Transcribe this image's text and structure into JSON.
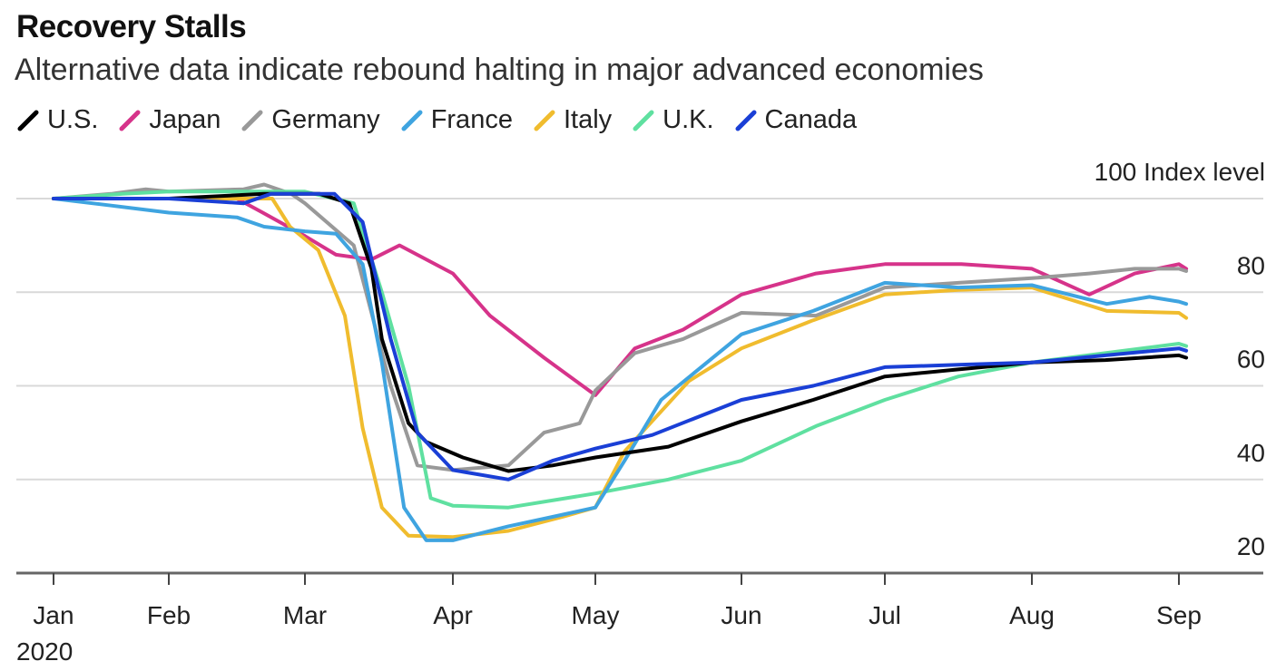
{
  "chart_data": {
    "type": "line",
    "title": "Recovery Stalls",
    "subtitle": "Alternative data indicate rebound halting in major advanced economies",
    "ylabel": "Index level",
    "ylim": [
      20,
      100
    ],
    "yticks": [
      100,
      80,
      60,
      40,
      20
    ],
    "ytick_labels": [
      "100 Index level",
      "80",
      "60",
      "40",
      "20"
    ],
    "xtick_labels": [
      "Jan",
      "Feb",
      "Mar",
      "Apr",
      "May",
      "Jun",
      "Jul",
      "Aug",
      "Sep"
    ],
    "xyear_label": "2020",
    "x_units": "months since Jan 1 2020",
    "grid": true,
    "legend_position": "top-left",
    "series": [
      {
        "name": "U.S.",
        "color": "#000000",
        "points": [
          [
            0,
            100
          ],
          [
            0.6,
            100
          ],
          [
            1,
            100
          ],
          [
            1.7,
            101
          ],
          [
            2.1,
            101
          ],
          [
            2.3,
            99
          ],
          [
            2.45,
            85
          ],
          [
            2.52,
            70
          ],
          [
            2.7,
            52
          ],
          [
            2.82,
            48
          ],
          [
            3.07,
            44.7
          ],
          [
            3.39,
            41.8
          ],
          [
            3.7,
            43
          ],
          [
            4,
            44.7
          ],
          [
            4.5,
            47
          ],
          [
            5,
            52.4
          ],
          [
            5.5,
            57
          ],
          [
            6,
            62
          ],
          [
            6.5,
            63.5
          ],
          [
            7,
            65
          ],
          [
            7.5,
            65.5
          ],
          [
            8,
            66.5
          ],
          [
            8.05,
            66
          ]
        ]
      },
      {
        "name": "Japan",
        "color": "#d6338a",
        "points": [
          [
            0,
            100
          ],
          [
            0.6,
            100
          ],
          [
            1,
            100
          ],
          [
            1.5,
            100
          ],
          [
            1.69,
            97
          ],
          [
            2,
            92
          ],
          [
            2.21,
            88
          ],
          [
            2.45,
            87
          ],
          [
            2.64,
            90
          ],
          [
            3,
            84
          ],
          [
            3.26,
            75
          ],
          [
            3.64,
            66
          ],
          [
            4,
            58
          ],
          [
            4.27,
            68
          ],
          [
            4.6,
            72
          ],
          [
            5,
            79.5
          ],
          [
            5.52,
            84
          ],
          [
            6,
            86
          ],
          [
            6.52,
            86
          ],
          [
            7,
            85
          ],
          [
            7.39,
            79.5
          ],
          [
            7.7,
            84
          ],
          [
            8,
            86
          ],
          [
            8.05,
            85
          ]
        ]
      },
      {
        "name": "Germany",
        "color": "#999999",
        "points": [
          [
            0,
            100
          ],
          [
            0.5,
            101
          ],
          [
            0.8,
            102
          ],
          [
            1,
            101.5
          ],
          [
            1.55,
            102
          ],
          [
            1.7,
            103
          ],
          [
            1.9,
            101
          ],
          [
            2,
            99
          ],
          [
            2.33,
            90
          ],
          [
            2.58,
            60
          ],
          [
            2.76,
            43
          ],
          [
            3,
            42
          ],
          [
            3.39,
            43
          ],
          [
            3.64,
            50
          ],
          [
            3.89,
            52
          ],
          [
            4,
            59
          ],
          [
            4.27,
            67
          ],
          [
            4.6,
            70
          ],
          [
            5,
            75.6
          ],
          [
            5.52,
            75
          ],
          [
            6,
            81
          ],
          [
            6.5,
            82
          ],
          [
            7,
            83
          ],
          [
            7.39,
            84
          ],
          [
            7.7,
            85
          ],
          [
            8,
            85
          ],
          [
            8.05,
            84.5
          ]
        ]
      },
      {
        "name": "France",
        "color": "#3fa4e0",
        "points": [
          [
            0,
            100
          ],
          [
            0.5,
            98.5
          ],
          [
            1,
            97
          ],
          [
            1.5,
            96
          ],
          [
            1.7,
            94
          ],
          [
            2,
            93
          ],
          [
            2.21,
            92.5
          ],
          [
            2.39,
            86
          ],
          [
            2.52,
            65
          ],
          [
            2.67,
            34
          ],
          [
            2.82,
            27
          ],
          [
            3,
            27
          ],
          [
            3.39,
            30
          ],
          [
            3.7,
            32
          ],
          [
            4,
            34
          ],
          [
            4.2,
            44
          ],
          [
            4.45,
            57
          ],
          [
            5,
            71
          ],
          [
            5.5,
            76
          ],
          [
            6,
            82
          ],
          [
            6.5,
            81
          ],
          [
            7,
            81.5
          ],
          [
            7.51,
            77.5
          ],
          [
            7.8,
            79
          ],
          [
            8,
            78
          ],
          [
            8.05,
            77.5
          ]
        ]
      },
      {
        "name": "Italy",
        "color": "#f0bc2e",
        "points": [
          [
            0,
            100
          ],
          [
            0.6,
            100
          ],
          [
            1,
            100
          ],
          [
            1.5,
            100
          ],
          [
            1.76,
            100
          ],
          [
            1.89,
            94
          ],
          [
            2.09,
            89
          ],
          [
            2.27,
            75
          ],
          [
            2.39,
            51
          ],
          [
            2.52,
            34
          ],
          [
            2.7,
            28
          ],
          [
            3,
            27.7
          ],
          [
            3.39,
            29
          ],
          [
            3.77,
            32
          ],
          [
            4,
            34
          ],
          [
            4.2,
            46
          ],
          [
            4.64,
            61
          ],
          [
            5,
            68
          ],
          [
            5.5,
            74
          ],
          [
            6,
            79.5
          ],
          [
            6.5,
            80.5
          ],
          [
            7,
            81
          ],
          [
            7.51,
            76
          ],
          [
            8,
            75.6
          ],
          [
            8.05,
            74.5
          ]
        ]
      },
      {
        "name": "U.K.",
        "color": "#5fe0a0",
        "points": [
          [
            0,
            100
          ],
          [
            0.6,
            101
          ],
          [
            1,
            101.5
          ],
          [
            1.6,
            101.5
          ],
          [
            2,
            101.5
          ],
          [
            2.33,
            99
          ],
          [
            2.52,
            80
          ],
          [
            2.7,
            60
          ],
          [
            2.85,
            36
          ],
          [
            3,
            34.4
          ],
          [
            3.39,
            34
          ],
          [
            4,
            37
          ],
          [
            4.5,
            40
          ],
          [
            5,
            44
          ],
          [
            5.52,
            51.4
          ],
          [
            6,
            57
          ],
          [
            6.5,
            62
          ],
          [
            7,
            65
          ],
          [
            7.5,
            67
          ],
          [
            8,
            69
          ],
          [
            8.05,
            68.5
          ]
        ]
      },
      {
        "name": "Canada",
        "color": "#1a3fd6",
        "points": [
          [
            0,
            100
          ],
          [
            0.6,
            100
          ],
          [
            1,
            100
          ],
          [
            1.55,
            99
          ],
          [
            1.75,
            101
          ],
          [
            2,
            101
          ],
          [
            2.2,
            101
          ],
          [
            2.39,
            95
          ],
          [
            2.58,
            70
          ],
          [
            2.76,
            50
          ],
          [
            3,
            42
          ],
          [
            3.39,
            40
          ],
          [
            3.7,
            44
          ],
          [
            4,
            46.6
          ],
          [
            4.39,
            49.5
          ],
          [
            5,
            57
          ],
          [
            5.5,
            60
          ],
          [
            6,
            64
          ],
          [
            6.5,
            64.5
          ],
          [
            7,
            65
          ],
          [
            7.5,
            66.5
          ],
          [
            8,
            68
          ],
          [
            8.05,
            67.5
          ]
        ]
      }
    ]
  }
}
